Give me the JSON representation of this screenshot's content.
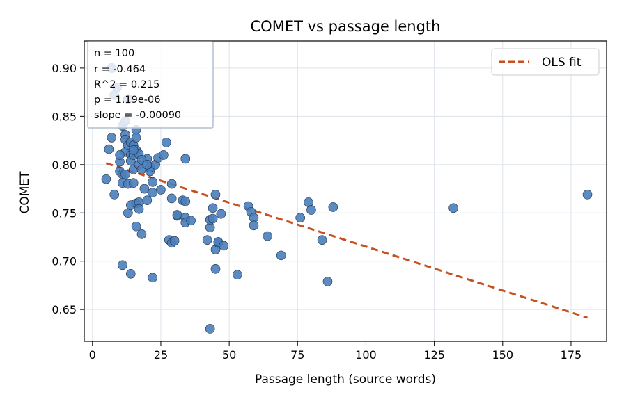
{
  "chart_data": {
    "type": "scatter",
    "title": "COMET vs passage length",
    "xlabel": "Passage length (source words)",
    "ylabel": "COMET",
    "xlim": [
      -3,
      188
    ],
    "ylim": [
      0.617,
      0.928
    ],
    "xticks": [
      0,
      25,
      50,
      75,
      100,
      125,
      150,
      175
    ],
    "yticks": [
      0.65,
      0.7,
      0.75,
      0.8,
      0.85,
      0.9
    ],
    "xtick_labels": [
      "0",
      "25",
      "50",
      "75",
      "100",
      "125",
      "150",
      "175"
    ],
    "ytick_labels": [
      "0.65",
      "0.70",
      "0.75",
      "0.80",
      "0.85",
      "0.90"
    ],
    "grid": true,
    "legend_position": "top-right",
    "point_color": "#4a7ebb",
    "fit_color": "#c8501e",
    "stats": [
      "n = 100",
      "r = -0.464",
      "R^2 = 0.215",
      "p = 1.19e-06",
      "slope = -0.00090"
    ],
    "fit": {
      "name": "OLS fit",
      "x": [
        5,
        181
      ],
      "y": [
        0.8015,
        0.6415
      ]
    },
    "points": [
      [
        5,
        0.785
      ],
      [
        6,
        0.816
      ],
      [
        7,
        0.828
      ],
      [
        8,
        0.769
      ],
      [
        8,
        0.872
      ],
      [
        9,
        0.88
      ],
      [
        10,
        0.803
      ],
      [
        10,
        0.793
      ],
      [
        11,
        0.79
      ],
      [
        11,
        0.781
      ],
      [
        11,
        0.84
      ],
      [
        11,
        0.696
      ],
      [
        12,
        0.831
      ],
      [
        12,
        0.826
      ],
      [
        12,
        0.813
      ],
      [
        12,
        0.845
      ],
      [
        13,
        0.82
      ],
      [
        13,
        0.75
      ],
      [
        13,
        0.78
      ],
      [
        13,
        0.868
      ],
      [
        14,
        0.81
      ],
      [
        14,
        0.804
      ],
      [
        14,
        0.687
      ],
      [
        14,
        0.758
      ],
      [
        14,
        0.823
      ],
      [
        15,
        0.82
      ],
      [
        15,
        0.81
      ],
      [
        15,
        0.795
      ],
      [
        15,
        0.781
      ],
      [
        16,
        0.836
      ],
      [
        16,
        0.828
      ],
      [
        16,
        0.815
      ],
      [
        16,
        0.76
      ],
      [
        16,
        0.736
      ],
      [
        17,
        0.811
      ],
      [
        17,
        0.8
      ],
      [
        17,
        0.761
      ],
      [
        17,
        0.754
      ],
      [
        18,
        0.795
      ],
      [
        18,
        0.728
      ],
      [
        19,
        0.775
      ],
      [
        20,
        0.806
      ],
      [
        20,
        0.763
      ],
      [
        21,
        0.793
      ],
      [
        21,
        0.797
      ],
      [
        22,
        0.683
      ],
      [
        22,
        0.771
      ],
      [
        22,
        0.782
      ],
      [
        23,
        0.8
      ],
      [
        24,
        0.807
      ],
      [
        25,
        0.774
      ],
      [
        27,
        0.823
      ],
      [
        28,
        0.722
      ],
      [
        29,
        0.719
      ],
      [
        29,
        0.765
      ],
      [
        29,
        0.78
      ],
      [
        30,
        0.721
      ],
      [
        31,
        0.747
      ],
      [
        31,
        0.748
      ],
      [
        33,
        0.763
      ],
      [
        34,
        0.806
      ],
      [
        34,
        0.762
      ],
      [
        34,
        0.745
      ],
      [
        34,
        0.74
      ],
      [
        36,
        0.742
      ],
      [
        42,
        0.722
      ],
      [
        43,
        0.735
      ],
      [
        43,
        0.743
      ],
      [
        43,
        0.63
      ],
      [
        44,
        0.755
      ],
      [
        44,
        0.744
      ],
      [
        45,
        0.712
      ],
      [
        45,
        0.692
      ],
      [
        45,
        0.769
      ],
      [
        46,
        0.719
      ],
      [
        46,
        0.72
      ],
      [
        47,
        0.749
      ],
      [
        48,
        0.716
      ],
      [
        53,
        0.686
      ],
      [
        57,
        0.757
      ],
      [
        58,
        0.751
      ],
      [
        59,
        0.745
      ],
      [
        59,
        0.737
      ],
      [
        64,
        0.726
      ],
      [
        69,
        0.706
      ],
      [
        76,
        0.745
      ],
      [
        79,
        0.761
      ],
      [
        80,
        0.753
      ],
      [
        84,
        0.722
      ],
      [
        86,
        0.679
      ],
      [
        88,
        0.756
      ],
      [
        132,
        0.755
      ],
      [
        181,
        0.769
      ],
      [
        7,
        0.9
      ],
      [
        15,
        0.815
      ],
      [
        12,
        0.79
      ],
      [
        10,
        0.81
      ],
      [
        18,
        0.805
      ],
      [
        26,
        0.81
      ],
      [
        20,
        0.8
      ]
    ]
  }
}
